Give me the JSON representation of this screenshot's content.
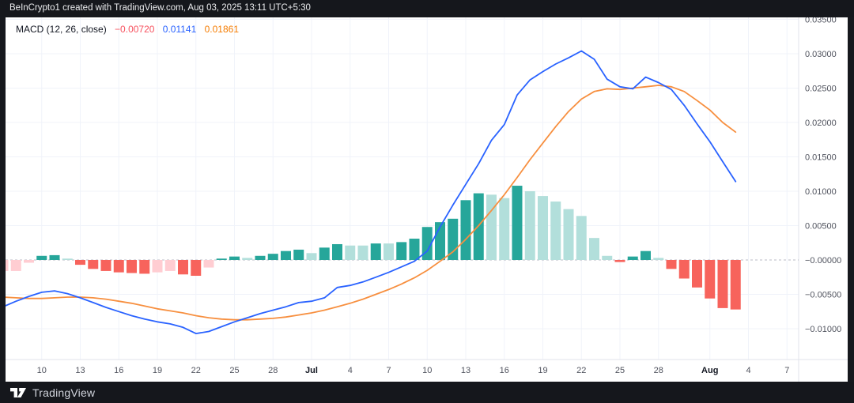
{
  "top_bar": {
    "attribution": "BeInCrypto1 created with TradingView.com, Aug 03, 2025 13:11 UTC+5:30"
  },
  "legend": {
    "title": "MACD (12, 26, close)",
    "histogram_value": "−0.00720",
    "macd_value": "0.01141",
    "signal_value": "0.01861"
  },
  "footer": {
    "brand": "TradingView",
    "logo_icon": "tradingview-logo"
  },
  "colors": {
    "panel_bg": "#FFFFFF",
    "frame_bg": "#15171C",
    "grid": "#F0F3FA",
    "axis_line": "#E0E3EB",
    "zero_line": "#B8BBC4",
    "axis_text": "#50535E",
    "month_text": "#131722",
    "hist_grow_above": "#26A69A",
    "hist_fall_above": "#B2DFDB",
    "hist_fall_below": "#F7635C",
    "hist_grow_below": "#FFCDD2",
    "macd_line": "#2962FF",
    "signal_line": "#F78F3F"
  },
  "chart_data": {
    "type": "bar",
    "title": "MACD (12, 26, close)",
    "xlabel": "date",
    "ylabel": "MACD value",
    "ylim": [
      -0.0145,
      0.0355
    ],
    "grid": true,
    "legend_position": "top-left",
    "zero_line_style": "dashed",
    "categories": [
      "Jun 7",
      "Jun 8",
      "Jun 9",
      "Jun 10",
      "Jun 11",
      "Jun 12",
      "Jun 13",
      "Jun 14",
      "Jun 15",
      "Jun 16",
      "Jun 17",
      "Jun 18",
      "Jun 19",
      "Jun 20",
      "Jun 21",
      "Jun 22",
      "Jun 23",
      "Jun 24",
      "Jun 25",
      "Jun 26",
      "Jun 27",
      "Jun 28",
      "Jun 29",
      "Jun 30",
      "Jul 1",
      "Jul 2",
      "Jul 3",
      "Jul 4",
      "Jul 5",
      "Jul 6",
      "Jul 7",
      "Jul 8",
      "Jul 9",
      "Jul 10",
      "Jul 11",
      "Jul 12",
      "Jul 13",
      "Jul 14",
      "Jul 15",
      "Jul 16",
      "Jul 17",
      "Jul 18",
      "Jul 19",
      "Jul 20",
      "Jul 21",
      "Jul 22",
      "Jul 23",
      "Jul 24",
      "Jul 25",
      "Jul 26",
      "Jul 27",
      "Jul 28",
      "Jul 29",
      "Jul 30",
      "Jul 31",
      "Aug 1",
      "Aug 2",
      "Aug 3"
    ],
    "series": [
      {
        "name": "Histogram",
        "type": "bar",
        "values": [
          -0.0016,
          -0.0016,
          -0.0004,
          0.0006,
          0.0007,
          0.0002,
          -0.0007,
          -0.0013,
          -0.0016,
          -0.0018,
          -0.0019,
          -0.002,
          -0.0018,
          -0.0016,
          -0.0021,
          -0.0023,
          -0.0011,
          0.0002,
          0.0005,
          0.0003,
          0.0006,
          0.0009,
          0.0013,
          0.0015,
          0.001,
          0.0018,
          0.0023,
          0.0021,
          0.0021,
          0.0024,
          0.0024,
          0.0026,
          0.0031,
          0.0048,
          0.0055,
          0.006,
          0.0087,
          0.0097,
          0.0095,
          0.009,
          0.0108,
          0.01,
          0.0093,
          0.0085,
          0.0074,
          0.0064,
          0.0032,
          0.0006,
          -0.0003,
          0.0005,
          0.0013,
          0.0003,
          -0.0013,
          -0.0027,
          -0.004,
          -0.0056,
          -0.007,
          -0.0072
        ],
        "bar_states": [
          "G",
          "G",
          "G",
          "g",
          "g",
          "f",
          "F",
          "F",
          "F",
          "F",
          "F",
          "F",
          "G",
          "G",
          "F",
          "F",
          "G",
          "g",
          "g",
          "f",
          "g",
          "g",
          "g",
          "g",
          "f",
          "g",
          "g",
          "f",
          "f",
          "g",
          "f",
          "g",
          "g",
          "g",
          "g",
          "g",
          "g",
          "g",
          "f",
          "f",
          "g",
          "f",
          "f",
          "f",
          "f",
          "f",
          "f",
          "f",
          "F",
          "g",
          "g",
          "f",
          "F",
          "F",
          "F",
          "F",
          "F",
          "F"
        ],
        "state_legend": {
          "g": "grow-above-zero teal",
          "f": "fall-above-zero light-teal",
          "F": "fall-below-zero red",
          "G": "grow-below-zero pink"
        }
      },
      {
        "name": "MACD",
        "type": "line",
        "values": [
          -0.0068,
          -0.006,
          -0.0053,
          -0.0047,
          -0.0045,
          -0.0049,
          -0.0055,
          -0.0062,
          -0.0069,
          -0.0075,
          -0.0081,
          -0.0086,
          -0.009,
          -0.0093,
          -0.0098,
          -0.0107,
          -0.0104,
          -0.0097,
          -0.009,
          -0.0084,
          -0.0078,
          -0.0073,
          -0.0068,
          -0.0062,
          -0.006,
          -0.0055,
          -0.004,
          -0.0037,
          -0.0032,
          -0.0025,
          -0.0018,
          -0.001,
          -0.0002,
          0.0013,
          0.0048,
          0.008,
          0.011,
          0.014,
          0.0174,
          0.0197,
          0.024,
          0.0262,
          0.0274,
          0.0285,
          0.0294,
          0.0304,
          0.0292,
          0.0263,
          0.0252,
          0.0249,
          0.0266,
          0.0258,
          0.0248,
          0.0225,
          0.0198,
          0.0172,
          0.0143,
          0.0114
        ]
      },
      {
        "name": "Signal",
        "type": "line",
        "values": [
          -0.0054,
          -0.0055,
          -0.0056,
          -0.0056,
          -0.0055,
          -0.0054,
          -0.0054,
          -0.0055,
          -0.0057,
          -0.006,
          -0.0063,
          -0.0067,
          -0.0071,
          -0.0074,
          -0.0077,
          -0.0081,
          -0.0084,
          -0.0086,
          -0.0087,
          -0.0087,
          -0.0086,
          -0.0085,
          -0.0083,
          -0.008,
          -0.0077,
          -0.0073,
          -0.0068,
          -0.0063,
          -0.0057,
          -0.005,
          -0.0043,
          -0.0035,
          -0.0026,
          -0.0015,
          -0.0002,
          0.0012,
          0.003,
          0.005,
          0.0072,
          0.0095,
          0.012,
          0.0146,
          0.017,
          0.0194,
          0.0216,
          0.0234,
          0.0245,
          0.0249,
          0.0248,
          0.025,
          0.0252,
          0.0254,
          0.0252,
          0.0245,
          0.0232,
          0.0218,
          0.02,
          0.0186
        ]
      }
    ],
    "y_ticks": [
      {
        "value": 0.035,
        "label": "0.03500"
      },
      {
        "value": 0.03,
        "label": "0.03000"
      },
      {
        "value": 0.025,
        "label": "0.02500"
      },
      {
        "value": 0.02,
        "label": "0.02000"
      },
      {
        "value": 0.015,
        "label": "0.01500"
      },
      {
        "value": 0.01,
        "label": "0.01000"
      },
      {
        "value": 0.005,
        "label": "0.00500"
      },
      {
        "value": 0.0,
        "label": "−0.00000"
      },
      {
        "value": -0.005,
        "label": "−0.00500"
      },
      {
        "value": -0.01,
        "label": "−0.01000"
      }
    ],
    "x_ticks": [
      {
        "i": 3,
        "label": "10",
        "bold": false
      },
      {
        "i": 6,
        "label": "13",
        "bold": false
      },
      {
        "i": 9,
        "label": "16",
        "bold": false
      },
      {
        "i": 12,
        "label": "19",
        "bold": false
      },
      {
        "i": 15,
        "label": "22",
        "bold": false
      },
      {
        "i": 18,
        "label": "25",
        "bold": false
      },
      {
        "i": 21,
        "label": "28",
        "bold": false
      },
      {
        "i": 24,
        "label": "Jul",
        "bold": true
      },
      {
        "i": 27,
        "label": "4",
        "bold": false
      },
      {
        "i": 30,
        "label": "7",
        "bold": false
      },
      {
        "i": 33,
        "label": "10",
        "bold": false
      },
      {
        "i": 36,
        "label": "13",
        "bold": false
      },
      {
        "i": 39,
        "label": "16",
        "bold": false
      },
      {
        "i": 42,
        "label": "19",
        "bold": false
      },
      {
        "i": 45,
        "label": "22",
        "bold": false
      },
      {
        "i": 48,
        "label": "25",
        "bold": false
      },
      {
        "i": 51,
        "label": "28",
        "bold": false
      },
      {
        "i": 55,
        "label": "Aug",
        "bold": true
      },
      {
        "i": 58,
        "label": "4",
        "bold": false
      },
      {
        "i": 61,
        "label": "7",
        "bold": false
      }
    ]
  }
}
